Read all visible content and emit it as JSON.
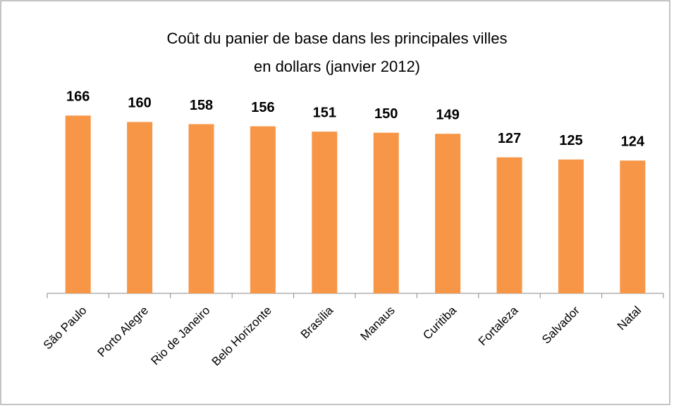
{
  "chart_data": {
    "type": "bar",
    "title": [
      "Coût du panier de base dans les principales villes",
      "en dollars  (janvier 2012)"
    ],
    "categories": [
      "São Paulo",
      "Porto Alegre",
      "Rio de Janeiro",
      "Belo Horizonte",
      "Brasília",
      "Manaus",
      "Curitiba",
      "Fortaleza",
      "Salvador",
      "Natal"
    ],
    "values": [
      166,
      160,
      158,
      156,
      151,
      150,
      149,
      127,
      125,
      124
    ],
    "color": "#f79646",
    "ylim": [
      0,
      180
    ],
    "grid": false
  }
}
